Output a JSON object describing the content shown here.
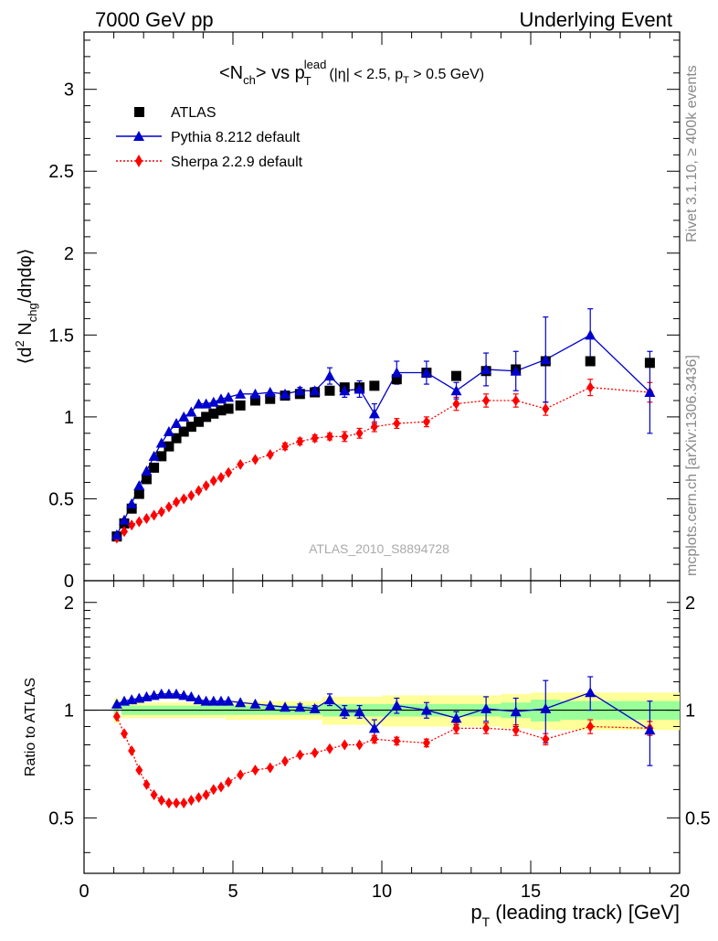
{
  "header": {
    "left": "7000 GeV pp",
    "right": "Underlying Event"
  },
  "side_labels": {
    "rivet": "Rivet 3.1.10, ≥ 400k events",
    "mcplots": "mcplots.cern.ch [arXiv:1306.3436]"
  },
  "plot_title": {
    "lhs_N": "<N",
    "lhs_sub": "ch",
    "lhs_close": "> vs p",
    "pt_sub": "T",
    "pt_sup": "lead",
    "cuts": "(|η| < 2.5, p",
    "cuts_sub": "T",
    "cuts_end": " > 0.5 GeV)"
  },
  "watermark": "ATLAS_2010_S8894728",
  "legend": {
    "position": "top-left",
    "entries": [
      {
        "label": "ATLAS",
        "marker": "square",
        "color": "#000000"
      },
      {
        "label": "Pythia 8.212 default",
        "marker": "triangle",
        "color": "#0000cc"
      },
      {
        "label": "Sherpa 2.2.9 default",
        "marker": "diamond",
        "color": "#ff0000"
      }
    ]
  },
  "axes": {
    "y_main_label": "⟨d² Nₙₕᵍ/dηdφ⟩",
    "y_main_prefix": "⟨d",
    "y_main_sup": "2",
    "y_main_N": " N",
    "y_main_sub": "chg",
    "y_main_end": "/dηdφ⟩",
    "y_ratio_label": "Ratio to ATLAS",
    "x_label_p": "p",
    "x_label_sub": "T",
    "x_label_rest": " (leading track) [GeV]",
    "x_ticks": [
      "0",
      "5",
      "10",
      "15",
      "20"
    ],
    "y_main_ticks": [
      "0",
      "0.5",
      "1",
      "1.5",
      "2",
      "2.5",
      "3"
    ],
    "y_ratio_ticks": [
      "0.5",
      "1",
      "2"
    ]
  },
  "chart_data": {
    "type": "scatter",
    "x_range": [
      0,
      20
    ],
    "y_range_main": [
      0,
      3.35
    ],
    "y_range_ratio": [
      0.35,
      2.3
    ],
    "ratio_log_scale": true,
    "x": [
      1.1,
      1.35,
      1.6,
      1.85,
      2.1,
      2.35,
      2.6,
      2.85,
      3.1,
      3.35,
      3.6,
      3.85,
      4.1,
      4.35,
      4.6,
      4.85,
      5.25,
      5.75,
      6.25,
      6.75,
      7.25,
      7.75,
      8.25,
      8.75,
      9.25,
      9.75,
      10.5,
      11.5,
      12.5,
      13.5,
      14.5,
      15.5,
      17.0,
      19.0
    ],
    "series": [
      {
        "name": "ATLAS",
        "values": [
          0.27,
          0.35,
          0.44,
          0.53,
          0.62,
          0.69,
          0.76,
          0.82,
          0.87,
          0.91,
          0.94,
          0.97,
          1.0,
          1.02,
          1.04,
          1.05,
          1.07,
          1.1,
          1.11,
          1.13,
          1.14,
          1.15,
          1.16,
          1.18,
          1.18,
          1.19,
          1.23,
          1.27,
          1.25,
          1.28,
          1.29,
          1.34,
          1.34,
          1.33
        ]
      },
      {
        "name": "Pythia 8.212 default",
        "values": [
          0.28,
          0.37,
          0.47,
          0.58,
          0.67,
          0.76,
          0.84,
          0.91,
          0.96,
          1.0,
          1.03,
          1.08,
          1.08,
          1.09,
          1.11,
          1.12,
          1.14,
          1.14,
          1.15,
          1.14,
          1.16,
          1.16,
          1.25,
          1.16,
          1.17,
          1.02,
          1.27,
          1.27,
          1.16,
          1.29,
          1.28,
          1.35,
          1.5,
          1.15
        ],
        "errors": [
          0,
          0,
          0,
          0,
          0,
          0,
          0,
          0,
          0,
          0,
          0,
          0,
          0,
          0,
          0,
          0,
          0,
          0,
          0,
          0,
          0.02,
          0.02,
          0.05,
          0.04,
          0.05,
          0.06,
          0.07,
          0.07,
          0.05,
          0.1,
          0.12,
          0.26,
          0.16,
          0.25
        ]
      },
      {
        "name": "Sherpa 2.2.9 default",
        "values": [
          0.26,
          0.3,
          0.34,
          0.36,
          0.38,
          0.4,
          0.42,
          0.45,
          0.48,
          0.5,
          0.52,
          0.55,
          0.58,
          0.61,
          0.63,
          0.66,
          0.71,
          0.74,
          0.77,
          0.82,
          0.85,
          0.87,
          0.88,
          0.88,
          0.9,
          0.94,
          0.96,
          0.97,
          1.08,
          1.1,
          1.1,
          1.05,
          1.18,
          1.15
        ],
        "errors": [
          0,
          0,
          0,
          0,
          0,
          0,
          0,
          0,
          0,
          0,
          0,
          0,
          0,
          0,
          0,
          0,
          0,
          0,
          0,
          0.02,
          0.02,
          0.02,
          0.02,
          0.03,
          0.03,
          0.03,
          0.03,
          0.03,
          0.04,
          0.04,
          0.04,
          0.04,
          0.05,
          0.06
        ]
      }
    ],
    "ratio": {
      "pythia": [
        1.04,
        1.06,
        1.07,
        1.08,
        1.09,
        1.1,
        1.11,
        1.11,
        1.11,
        1.1,
        1.09,
        1.07,
        1.06,
        1.06,
        1.06,
        1.06,
        1.05,
        1.04,
        1.03,
        1.02,
        1.02,
        1.01,
        1.07,
        0.99,
        0.99,
        0.89,
        1.03,
        1.0,
        0.95,
        1.01,
        0.99,
        1.01,
        1.12,
        0.88
      ],
      "pythia_err": [
        0,
        0,
        0,
        0,
        0,
        0,
        0,
        0,
        0,
        0,
        0,
        0,
        0,
        0,
        0,
        0,
        0,
        0,
        0,
        0,
        0.02,
        0.02,
        0.04,
        0.04,
        0.04,
        0.05,
        0.05,
        0.05,
        0.04,
        0.08,
        0.09,
        0.2,
        0.12,
        0.18
      ],
      "sherpa": [
        0.96,
        0.86,
        0.77,
        0.68,
        0.62,
        0.58,
        0.56,
        0.55,
        0.55,
        0.55,
        0.56,
        0.57,
        0.58,
        0.6,
        0.61,
        0.63,
        0.66,
        0.68,
        0.69,
        0.72,
        0.75,
        0.76,
        0.78,
        0.8,
        0.8,
        0.83,
        0.82,
        0.81,
        0.89,
        0.89,
        0.88,
        0.83,
        0.9,
        0.89
      ],
      "sherpa_err": [
        0,
        0,
        0,
        0,
        0,
        0,
        0,
        0,
        0,
        0,
        0,
        0,
        0,
        0,
        0,
        0,
        0,
        0,
        0,
        0,
        0,
        0,
        0,
        0,
        0,
        0.02,
        0.02,
        0.02,
        0.03,
        0.03,
        0.03,
        0.03,
        0.04,
        0.04
      ],
      "band_yellow": [
        [
          1.0,
          1.17,
          0.08
        ],
        [
          1.25,
          4.75,
          0.05
        ],
        [
          4.75,
          8.0,
          0.06
        ],
        [
          8.0,
          10.0,
          0.09
        ],
        [
          10.0,
          14.0,
          0.1
        ],
        [
          14.0,
          15.0,
          0.11
        ],
        [
          15.0,
          16.0,
          0.12
        ],
        [
          16.0,
          20.0,
          0.12
        ]
      ],
      "band_green": [
        [
          1.0,
          1.17,
          0.04
        ],
        [
          1.25,
          4.75,
          0.03
        ],
        [
          4.75,
          8.0,
          0.03
        ],
        [
          8.0,
          10.0,
          0.04
        ],
        [
          10.0,
          14.0,
          0.04
        ],
        [
          14.0,
          15.0,
          0.05
        ],
        [
          15.0,
          16.0,
          0.07
        ],
        [
          16.0,
          20.0,
          0.06
        ]
      ]
    }
  }
}
